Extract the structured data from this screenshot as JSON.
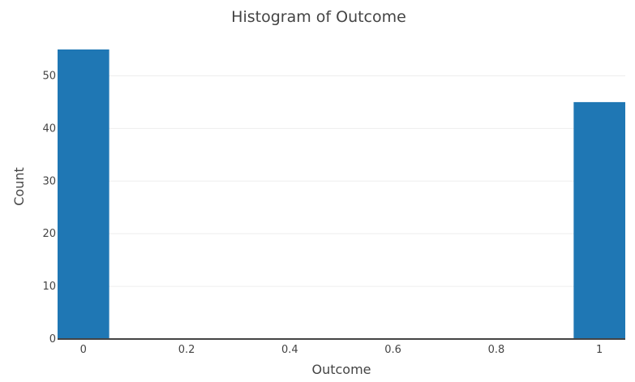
{
  "chart_data": {
    "type": "bar",
    "title": "Histogram of Outcome",
    "xlabel": "Outcome",
    "ylabel": "Count",
    "bin_width": 0.1,
    "bins": [
      {
        "x_center": 0,
        "value": 55
      },
      {
        "x_center": 1,
        "value": 45
      }
    ],
    "xlim": [
      -0.05,
      1.05
    ],
    "ylim": [
      0,
      55
    ],
    "x_ticks": [
      {
        "value": 0,
        "label": "0"
      },
      {
        "value": 0.2,
        "label": "0.2"
      },
      {
        "value": 0.4,
        "label": "0.4"
      },
      {
        "value": 0.6,
        "label": "0.6"
      },
      {
        "value": 0.8,
        "label": "0.8"
      },
      {
        "value": 1,
        "label": "1"
      }
    ],
    "y_ticks": [
      {
        "value": 0,
        "label": "0"
      },
      {
        "value": 10,
        "label": "10"
      },
      {
        "value": 20,
        "label": "20"
      },
      {
        "value": 30,
        "label": "30"
      },
      {
        "value": 40,
        "label": "40"
      },
      {
        "value": 50,
        "label": "50"
      }
    ],
    "grid": true,
    "bar_color": "#1f77b4"
  }
}
